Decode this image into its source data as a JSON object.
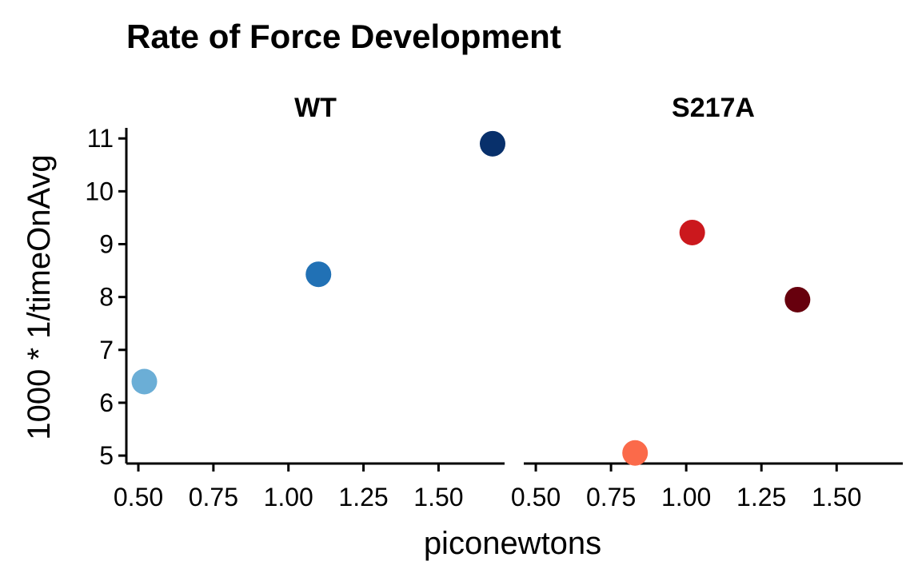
{
  "chart_data": {
    "type": "scatter",
    "title": "Rate of Force Development",
    "xlabel": "piconewtons",
    "ylabel": "1000 * 1/timeOnAvg",
    "xlim": [
      0.46,
      1.72
    ],
    "ylim": [
      4.85,
      11.2
    ],
    "xticks": [
      0.5,
      0.75,
      1.0,
      1.25,
      1.5
    ],
    "xtick_labels": [
      "0.50",
      "0.75",
      "1.00",
      "1.25",
      "1.50"
    ],
    "yticks": [
      5,
      6,
      7,
      8,
      9,
      10,
      11
    ],
    "ytick_labels": [
      "5",
      "6",
      "7",
      "8",
      "9",
      "10",
      "11"
    ],
    "grid": false,
    "facets": [
      {
        "label": "WT",
        "points": [
          {
            "x": 0.52,
            "y": 6.4,
            "color": "#6baed6"
          },
          {
            "x": 1.1,
            "y": 8.43,
            "color": "#2171b5"
          },
          {
            "x": 1.68,
            "y": 10.9,
            "color": "#08306b"
          }
        ]
      },
      {
        "label": "S217A",
        "points": [
          {
            "x": 0.83,
            "y": 5.05,
            "color": "#fb6a4a"
          },
          {
            "x": 1.02,
            "y": 9.22,
            "color": "#cb181d"
          },
          {
            "x": 1.37,
            "y": 7.95,
            "color": "#67000d"
          }
        ]
      }
    ]
  }
}
